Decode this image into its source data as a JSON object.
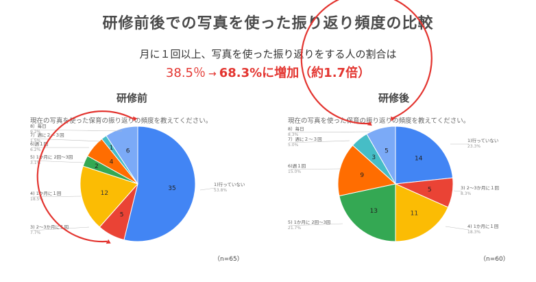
{
  "title": "研修前後での写真を使った振り返り頻度の比較",
  "subtitle_line1": "月に１回以上、写真を使った振り返りをする人の割合は",
  "subtitle_before": "38.5％",
  "subtitle_arrow": "→",
  "subtitle_after": "68.3%に増加（約1.7倍）",
  "colors": {
    "title": "#4a4a4a",
    "highlight": "#e3342f",
    "arc": "#e3342f"
  },
  "chart_data": [
    {
      "type": "pie",
      "title": "研修前",
      "question": "現在の写真を使った保育の振り返りの頻度を教えてください。",
      "n_label": "（n=65）",
      "slices": [
        {
          "label": "1)行っていない",
          "value": 35,
          "percent": "53.8%",
          "color": "#4285f4"
        },
        {
          "label": "3) 2～3か月に１回",
          "value": 5,
          "percent": "7.7%",
          "color": "#ea4335"
        },
        {
          "label": "4) 1か月に１回",
          "value": 12,
          "percent": "18.5%",
          "color": "#fbbc04"
        },
        {
          "label": "5) 1か月に 2回～3回",
          "value": 2,
          "percent": "3.1%",
          "color": "#34a853"
        },
        {
          "label": "6)週１回",
          "value": 4,
          "percent": "6.2%",
          "color": "#ff6d01"
        },
        {
          "label": "7）週に２～３回",
          "value": 1,
          "percent": "1.5%",
          "color": "#46bdc6"
        },
        {
          "label": "8）毎日",
          "value": 6,
          "percent": "9.2%",
          "color": "#7baaf7"
        }
      ]
    },
    {
      "type": "pie",
      "title": "研修後",
      "question": "現在の写真を使った保育の振り返りの頻度を教えてください。",
      "n_label": "（n=60）",
      "slices": [
        {
          "label": "1)行っていない",
          "value": 14,
          "percent": "23.3%",
          "color": "#4285f4"
        },
        {
          "label": "3) 2～3か月に１回",
          "value": 5,
          "percent": "8.3%",
          "color": "#ea4335"
        },
        {
          "label": "4) 1か月に１回",
          "value": 11,
          "percent": "18.3%",
          "color": "#fbbc04"
        },
        {
          "label": "5) 1か月に 2回～3回",
          "value": 13,
          "percent": "21.7%",
          "color": "#34a853"
        },
        {
          "label": "6)週１回",
          "value": 9,
          "percent": "15.0%",
          "color": "#ff6d01"
        },
        {
          "label": "7）週に２～３回",
          "value": 3,
          "percent": "5.0%",
          "color": "#46bdc6"
        },
        {
          "label": "8）毎日",
          "value": 5,
          "percent": "8.3%",
          "color": "#7baaf7"
        }
      ]
    }
  ]
}
